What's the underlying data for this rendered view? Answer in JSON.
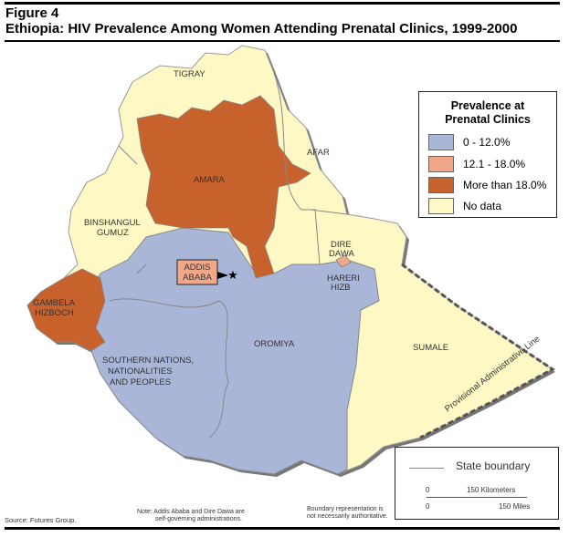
{
  "title": {
    "figure": "Figure 4",
    "main": "Ethiopia: HIV Prevalence Among Women Attending Prenatal Clinics, 1999-2000"
  },
  "legend": {
    "heading_line1": "Prevalence at",
    "heading_line2": "Prenatal Clinics",
    "items": [
      {
        "label": "0 - 12.0%",
        "color": "#a9b6d8"
      },
      {
        "label": "12.1 - 18.0%",
        "color": "#f0a888"
      },
      {
        "label": "More than 18.0%",
        "color": "#c8622d"
      },
      {
        "label": "No data",
        "color": "#fdf8c4"
      }
    ]
  },
  "regions": {
    "tigray": "TIGRAY",
    "afar": "AFAR",
    "amara": "AMARA",
    "binshangul1": "BINSHANGUL",
    "binshangul2": "GUMUZ",
    "addis1": "ADDIS",
    "addis2": "ABABA",
    "dire1": "DIRE",
    "dire2": "DAWA",
    "hareri1": "HARERI",
    "hareri2": "HIZB",
    "gambela1": "GAMBELA",
    "gambela2": "HIZBOCH",
    "oromiya": "OROMIYA",
    "snnp1": "SOUTHERN NATIONS,",
    "snnp2": "NATIONALITIES",
    "snnp3": "AND PEOPLES",
    "sumale": "SUMALE",
    "provisional": "Provisional Administrative Line"
  },
  "scale": {
    "boundary_label": "State boundary",
    "km_zero": "0",
    "km_label": "150 Kilometers",
    "mi_zero": "0",
    "mi_label": "150 Miles"
  },
  "notes": {
    "source": "Source: Futures Group.",
    "note1": "Note:  Addis Ababa and Dire Dawa are",
    "note2": "self-governing administrations.",
    "boundary1": "Boundary representation is",
    "boundary2": "not necessarily authoritative."
  }
}
